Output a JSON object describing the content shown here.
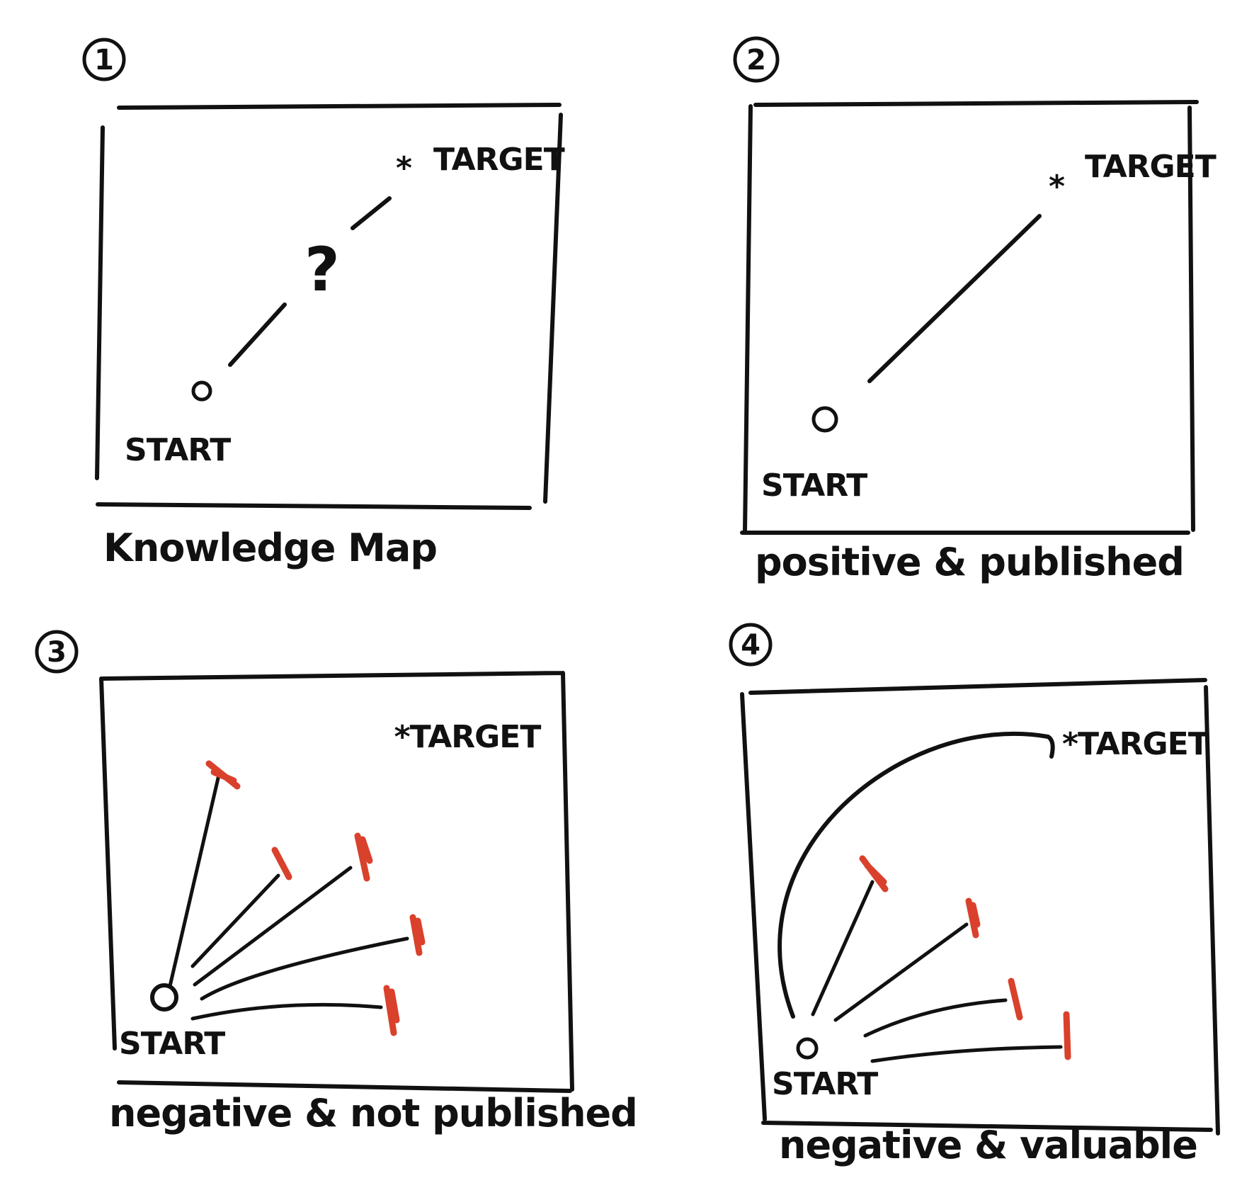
{
  "panels": [
    {
      "number": "1",
      "start_label": "START",
      "target_label": "TARGET",
      "question_mark": "?",
      "caption": "Knowledge Map"
    },
    {
      "number": "2",
      "start_label": "START",
      "target_label": "TARGET",
      "caption": "positive & published"
    },
    {
      "number": "3",
      "start_label": "START",
      "target_label": "TARGET",
      "caption": "negative & not published"
    },
    {
      "number": "4",
      "start_label": "START",
      "target_label": "TARGET",
      "caption": "negative & valuable"
    }
  ],
  "colors": {
    "ink": "#111111",
    "dead_end": "#d9412c",
    "background": "#ffffff"
  }
}
